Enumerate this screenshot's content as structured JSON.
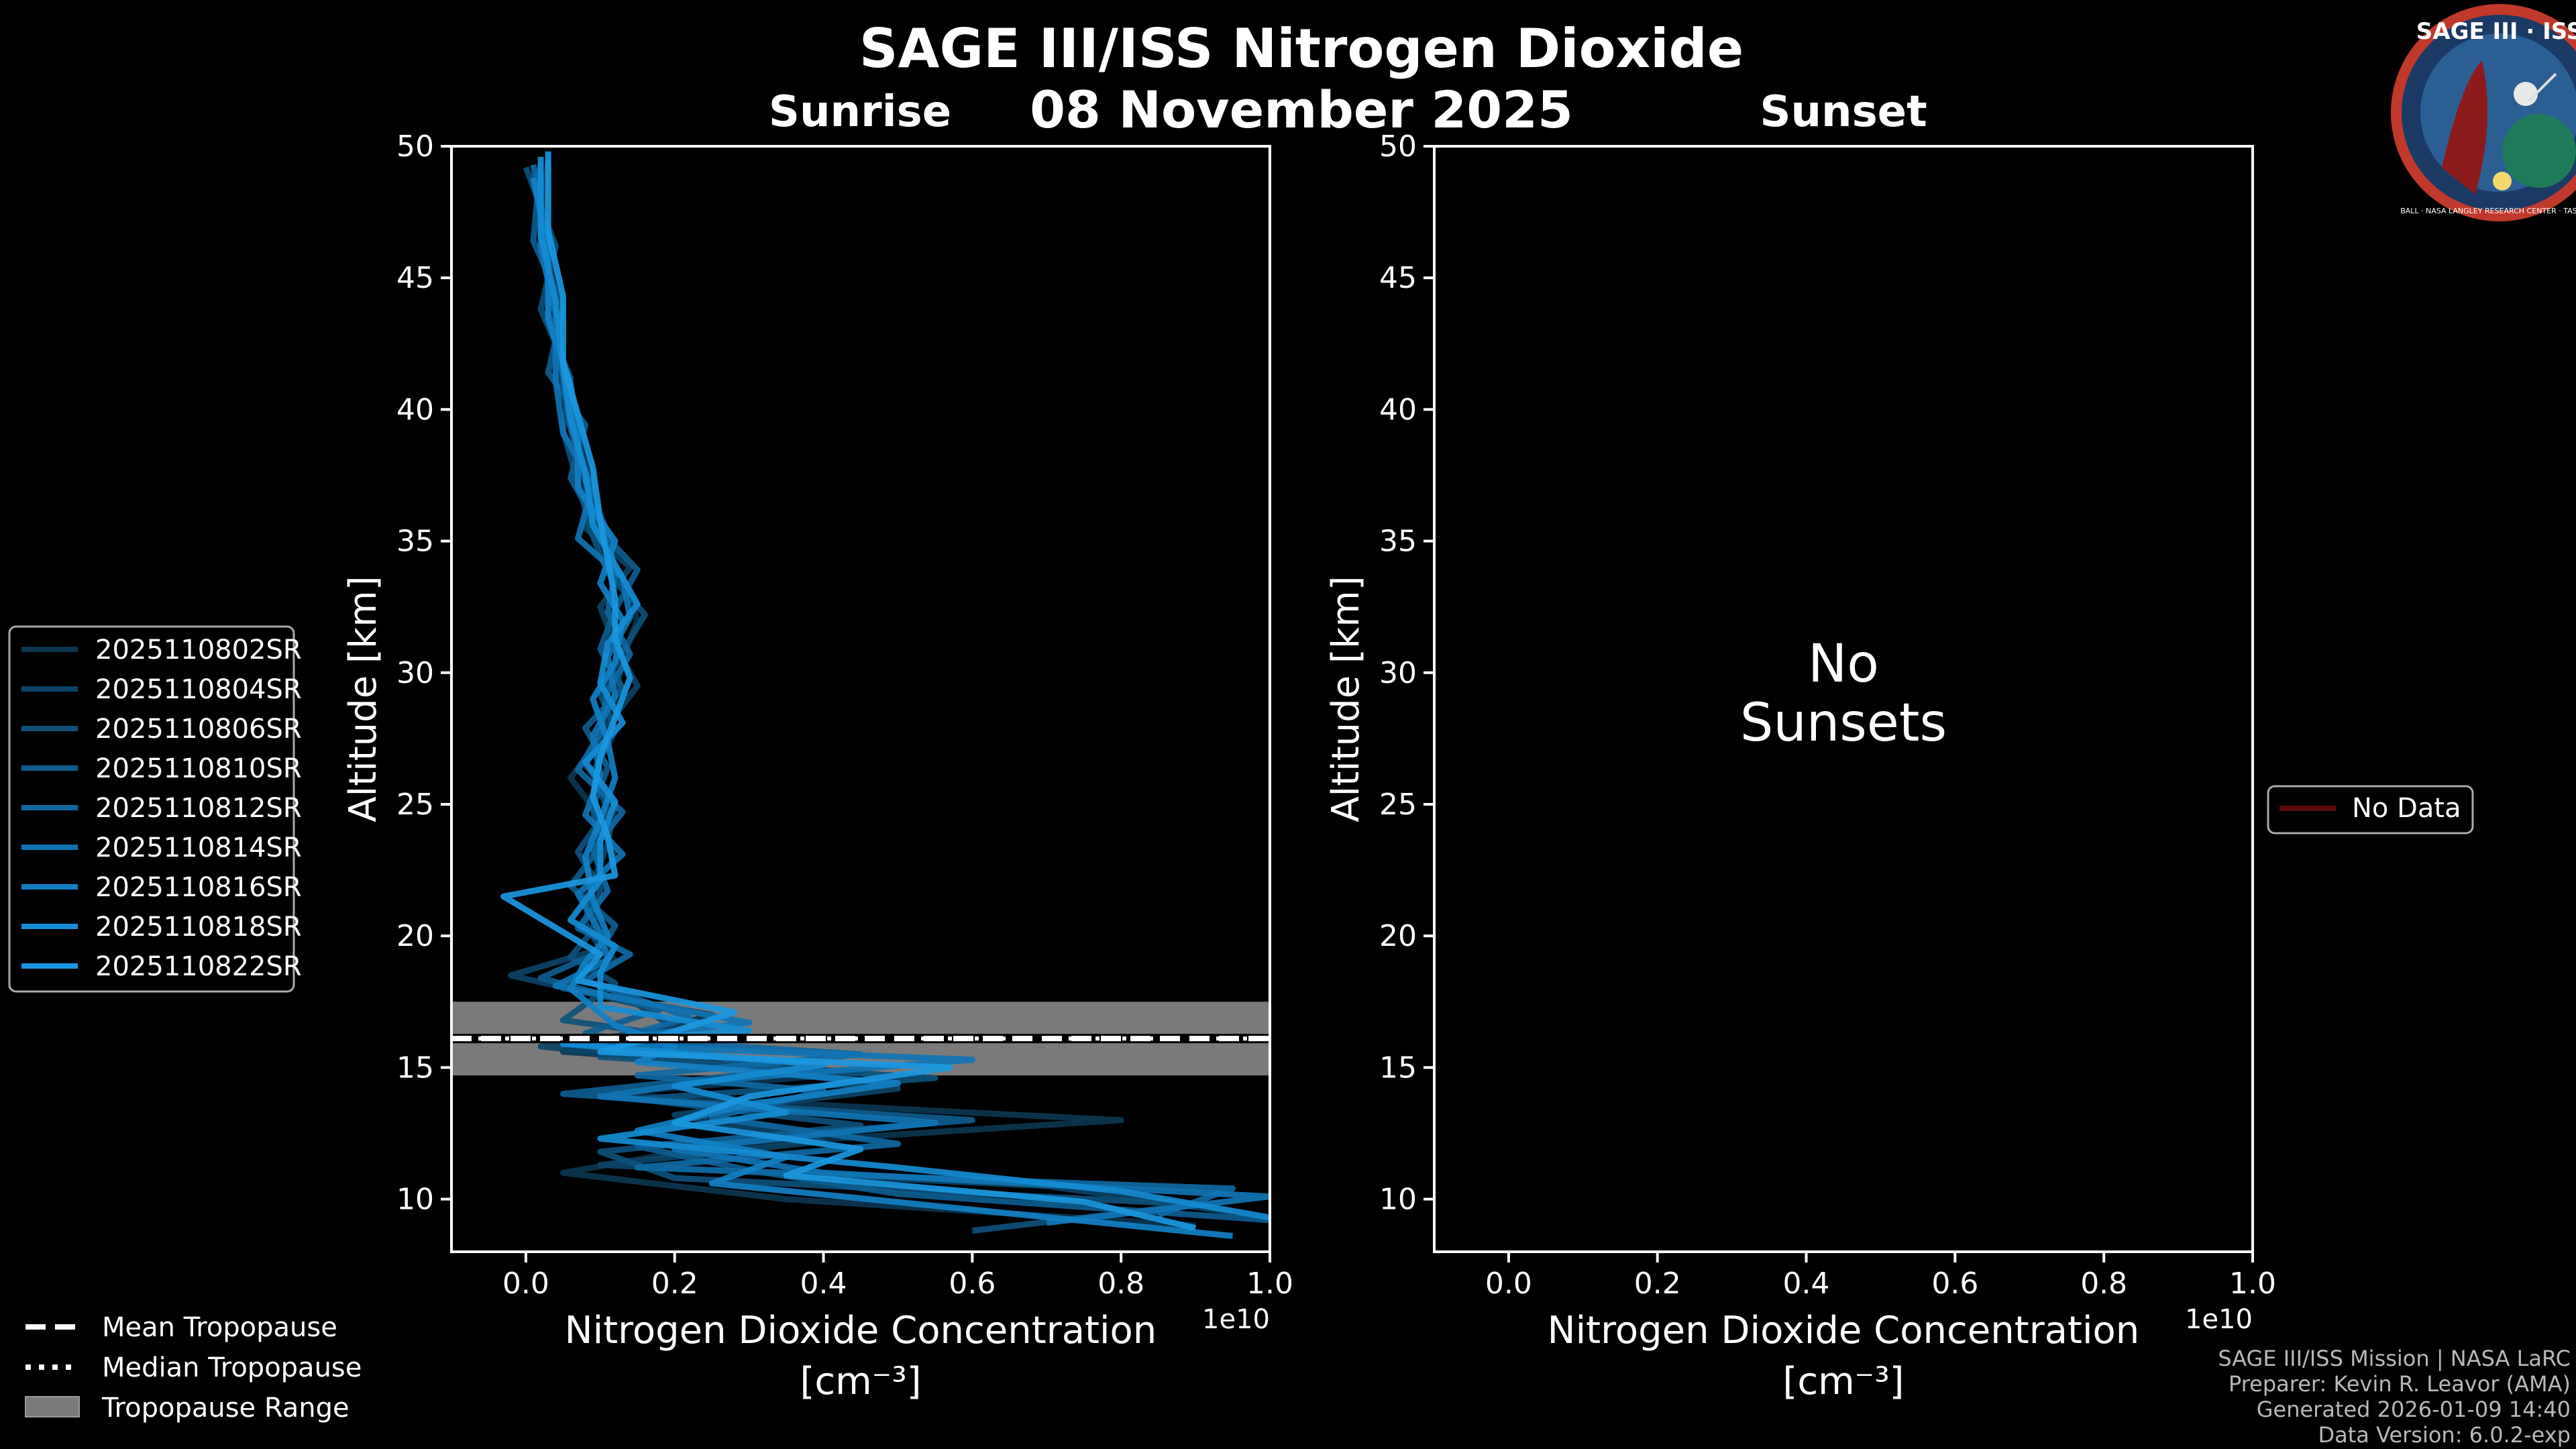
{
  "header": {
    "title": "SAGE III/ISS Nitrogen Dioxide",
    "date": "08 November 2025",
    "sunrise_label": "Sunrise",
    "sunset_label": "Sunset"
  },
  "logo": {
    "text": "SAGE III · ISS",
    "ring_text": "BALL · NASA LANGLEY RESEARCH CENTER · TAS · ESA"
  },
  "footer": {
    "lines": [
      "SAGE III/ISS Mission | NASA LaRC",
      "Preparer: Kevin R. Leavor (AMA)",
      "Generated 2026-01-09 14:40",
      "Data Version: 6.0.2-exp"
    ]
  },
  "tropopause_legend": {
    "mean": "Mean Tropopause",
    "median": "Median Tropopause",
    "range": "Tropopause Range"
  },
  "no_data_legend": "No Data",
  "no_sunsets_text": [
    "No",
    "Sunsets"
  ],
  "colors": {
    "background": "#000000",
    "axis": "#ffffff",
    "tropopause_band": "#7a7a7a",
    "no_data_line": "#5a0a0a",
    "series": [
      "#0b3550",
      "#0c4366",
      "#0d507a",
      "#0e5c8e",
      "#0f68a2",
      "#1074b4",
      "#1280c4",
      "#158cd3",
      "#1a97e0"
    ]
  },
  "chart_data": [
    {
      "type": "line",
      "panel": "Sunrise",
      "xlabel": "Nitrogen Dioxide Concentration",
      "xlabel_unit": "[cm⁻³]",
      "ylabel": "Altitude [km]",
      "x_scale_label": "1e10",
      "xlim": [
        -0.1,
        1.0
      ],
      "ylim": [
        8,
        50
      ],
      "xticks": [
        "0.0",
        "0.2",
        "0.4",
        "0.6",
        "0.8",
        "1.0"
      ],
      "xtick_values": [
        0.0,
        0.2,
        0.4,
        0.6,
        0.8,
        1.0
      ],
      "yticks": [
        "10",
        "15",
        "20",
        "25",
        "30",
        "35",
        "40",
        "45",
        "50"
      ],
      "ytick_values": [
        10,
        15,
        20,
        25,
        30,
        35,
        40,
        45,
        50
      ],
      "tropopause": {
        "mean": 16.1,
        "median": 16.1,
        "range": [
          14.7,
          17.5
        ]
      },
      "series": [
        {
          "name": "2025110802SR",
          "x": [
            0.9,
            0.35,
            0.05,
            0.25,
            0.8,
            0.1,
            0.45,
            0.05,
            0.15,
            0.25,
            0.05,
            0.12,
            0.1,
            0.08,
            0.12,
            0.1,
            0.06,
            0.1,
            0.12,
            0.13,
            0.15,
            0.13,
            0.1,
            0.08,
            0.07,
            0.05,
            0.04,
            0.03,
            0.01
          ],
          "y": [
            9,
            10,
            11,
            12,
            13,
            14,
            14.8,
            15.6,
            16.2,
            17,
            18,
            19,
            20,
            21.5,
            23,
            24.5,
            26,
            27.5,
            29,
            30.5,
            32,
            33.5,
            35,
            37,
            39,
            41,
            43.5,
            46,
            49
          ]
        },
        {
          "name": "2025110804SR",
          "x": [
            0.95,
            0.7,
            0.1,
            0.4,
            0.2,
            0.5,
            0.3,
            0.02,
            0.2,
            0.15,
            -0.02,
            0.1,
            0.08,
            0.09,
            0.11,
            0.12,
            0.08,
            0.11,
            0.15,
            0.12,
            0.1,
            0.14,
            0.08,
            0.09,
            0.06,
            0.04,
            0.05,
            0.02,
            0.03
          ],
          "y": [
            9.5,
            10.5,
            11.3,
            12.2,
            13.2,
            14.2,
            15,
            15.8,
            16.5,
            17.4,
            18.5,
            19.5,
            20.5,
            22,
            23.5,
            25,
            26.5,
            28,
            29.5,
            31,
            32.5,
            34,
            35.5,
            37.5,
            39.5,
            41.5,
            44,
            46.5,
            49.5
          ]
        },
        {
          "name": "2025110806SR",
          "x": [
            0.6,
            0.9,
            0.2,
            0.1,
            0.45,
            0.15,
            0.55,
            0.1,
            0.25,
            0.05,
            0.12,
            0.06,
            0.09,
            0.1,
            0.07,
            0.11,
            0.09,
            0.12,
            0.1,
            0.13,
            0.16,
            0.11,
            0.09,
            0.07,
            0.05,
            0.06,
            0.02,
            0.04,
            0.0
          ],
          "y": [
            8.8,
            9.8,
            10.8,
            11.8,
            12.8,
            13.8,
            14.6,
            15.4,
            16,
            16.8,
            18.2,
            19.2,
            20.2,
            21.8,
            23.2,
            24.8,
            26.2,
            27.8,
            29.2,
            30.8,
            32.2,
            33.8,
            35.2,
            37.2,
            39.2,
            41.2,
            43.8,
            46.2,
            49.2
          ]
        },
        {
          "name": "2025110810SR",
          "x": [
            1.0,
            0.5,
            0.3,
            0.15,
            0.6,
            0.05,
            0.35,
            0.2,
            0.08,
            0.18,
            0.02,
            0.1,
            0.12,
            0.06,
            0.1,
            0.09,
            0.11,
            0.08,
            0.13,
            0.1,
            0.12,
            0.15,
            0.1,
            0.06,
            0.08,
            0.03,
            0.05,
            0.01,
            0.02
          ],
          "y": [
            9.2,
            10.2,
            11.1,
            12,
            13,
            14,
            14.9,
            15.7,
            16.3,
            17.2,
            18.4,
            19.4,
            20.4,
            21.9,
            23.4,
            24.9,
            26.4,
            27.9,
            29.4,
            30.9,
            32.4,
            33.9,
            35.4,
            37.4,
            39.4,
            41.4,
            43.9,
            46.4,
            49.4
          ]
        },
        {
          "name": "2025110812SR",
          "x": [
            0.85,
            0.95,
            0.15,
            0.5,
            0.25,
            0.4,
            0.15,
            0.45,
            0.12,
            0.22,
            0.08,
            0.14,
            0.07,
            0.11,
            0.09,
            0.13,
            0.07,
            0.1,
            0.11,
            0.14,
            0.11,
            0.12,
            0.11,
            0.08,
            0.06,
            0.05,
            0.03,
            0.03,
            0.01
          ],
          "y": [
            9.4,
            10.4,
            11.2,
            12.1,
            13.1,
            14.1,
            14.7,
            15.5,
            16.1,
            16.9,
            18.3,
            19.3,
            20.3,
            21.7,
            23.3,
            24.7,
            26.3,
            27.7,
            29.3,
            30.7,
            32.3,
            33.7,
            35.3,
            37.3,
            39.3,
            41.3,
            43.7,
            46.3,
            49.3
          ]
        },
        {
          "name": "2025110814SR",
          "x": [
            0.7,
            1.0,
            0.4,
            0.2,
            0.55,
            0.1,
            0.25,
            0.6,
            0.05,
            0.3,
            0.04,
            0.11,
            0.1,
            0.07,
            0.13,
            0.08,
            0.1,
            0.09,
            0.12,
            0.11,
            0.14,
            0.13,
            0.07,
            0.09,
            0.05,
            0.04,
            0.04,
            0.02,
            0.02
          ],
          "y": [
            9.1,
            10.1,
            11,
            11.9,
            12.9,
            13.9,
            14.5,
            15.3,
            15.9,
            16.7,
            18.1,
            19.1,
            20.1,
            21.6,
            23.1,
            24.6,
            26.1,
            27.6,
            29.1,
            30.6,
            32.1,
            33.6,
            35.1,
            37.1,
            39.1,
            41.1,
            43.6,
            46.1,
            49.1
          ]
        },
        {
          "name": "2025110816SR",
          "x": [
            0.95,
            0.6,
            0.25,
            0.35,
            0.15,
            0.3,
            0.5,
            0.15,
            0.2,
            0.12,
            0.06,
            0.08,
            0.11,
            0.09,
            0.08,
            0.1,
            0.12,
            0.11,
            0.09,
            0.12,
            0.13,
            0.1,
            0.12,
            0.07,
            0.07,
            0.06,
            0.03,
            0.03,
            0.01
          ],
          "y": [
            8.6,
            9.6,
            10.6,
            11.6,
            12.6,
            13.6,
            14.4,
            15.2,
            15.8,
            16.6,
            18,
            19,
            20,
            21.4,
            23,
            24.4,
            26,
            27.4,
            29,
            30.4,
            32,
            33.4,
            35,
            37,
            39,
            41,
            43.4,
            46,
            48.8
          ]
        },
        {
          "name": "2025110818SR",
          "x": [
            1.0,
            0.8,
            0.5,
            0.1,
            0.35,
            0.2,
            0.4,
            0.05,
            0.3,
            0.1,
            0.1,
            0.12,
            0.06,
            0.1,
            0.1,
            0.12,
            0.08,
            0.13,
            0.1,
            0.11,
            0.15,
            0.12,
            0.09,
            0.08,
            0.06,
            0.05,
            0.04,
            0.02,
            0.02
          ],
          "y": [
            9.3,
            10.3,
            11.2,
            12.3,
            13.3,
            14.3,
            15.1,
            15.9,
            16.4,
            17.3,
            18.6,
            19.6,
            20.6,
            22.1,
            23.6,
            25.1,
            26.6,
            28.1,
            29.6,
            31.1,
            32.6,
            34.1,
            35.6,
            37.6,
            39.6,
            41.6,
            44.1,
            46.6,
            49.6
          ]
        },
        {
          "name": "2025110822SR",
          "x": [
            0.9,
            0.75,
            0.35,
            0.45,
            0.2,
            0.3,
            0.57,
            0.1,
            0.18,
            0.28,
            0.07,
            0.1,
            -0.03,
            0.12,
            0.11,
            0.09,
            0.1,
            0.12,
            0.14,
            0.12,
            0.12,
            0.11,
            0.1,
            0.09,
            0.07,
            0.05,
            0.05,
            0.03,
            0.03
          ],
          "y": [
            8.9,
            9.9,
            10.9,
            11.9,
            12.9,
            13.9,
            15,
            15.6,
            16.2,
            17.1,
            18.3,
            19.3,
            21.5,
            22.3,
            23.8,
            25.3,
            26.8,
            28.3,
            29.8,
            31.3,
            32.8,
            34.3,
            35.8,
            37.8,
            39.8,
            41.8,
            44.3,
            46.8,
            49.8
          ]
        }
      ]
    },
    {
      "type": "line",
      "panel": "Sunset",
      "xlabel": "Nitrogen Dioxide Concentration",
      "xlabel_unit": "[cm⁻³]",
      "ylabel": "Altitude [km]",
      "x_scale_label": "1e10",
      "xlim": [
        -0.1,
        1.0
      ],
      "ylim": [
        8,
        50
      ],
      "xticks": [
        "0.0",
        "0.2",
        "0.4",
        "0.6",
        "0.8",
        "1.0"
      ],
      "xtick_values": [
        0.0,
        0.2,
        0.4,
        0.6,
        0.8,
        1.0
      ],
      "yticks": [
        "10",
        "15",
        "20",
        "25",
        "30",
        "35",
        "40",
        "45",
        "50"
      ],
      "ytick_values": [
        10,
        15,
        20,
        25,
        30,
        35,
        40,
        45,
        50
      ],
      "series": [
        {
          "name": "No Data",
          "x": [],
          "y": []
        }
      ]
    }
  ]
}
